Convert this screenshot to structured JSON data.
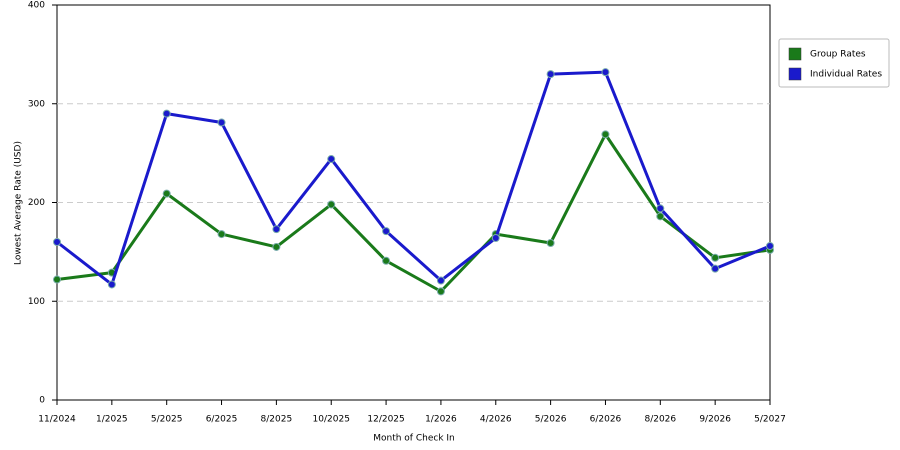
{
  "chart_data": {
    "type": "line",
    "x_label": "Month of Check In",
    "y_label": "Lowest Average Rate (USD)",
    "categories": [
      "11/2024",
      "1/2025",
      "5/2025",
      "6/2025",
      "8/2025",
      "10/2025",
      "12/2025",
      "1/2026",
      "4/2026",
      "5/2026",
      "6/2026",
      "8/2026",
      "9/2026",
      "5/2027"
    ],
    "series": [
      {
        "name": "Group Rates",
        "color": "#1a7a1a",
        "values": [
          122,
          129,
          209,
          168,
          155,
          198,
          141,
          110,
          168,
          159,
          269,
          186,
          144,
          152
        ]
      },
      {
        "name": "Individual Rates",
        "color": "#1a1acc",
        "values": [
          160,
          117,
          290,
          281,
          173,
          244,
          171,
          121,
          164,
          330,
          332,
          194,
          133,
          156
        ]
      }
    ],
    "ylim": [
      0,
      400
    ],
    "yticks": [
      0,
      100,
      200,
      300,
      400
    ],
    "grid": true,
    "legend": "right"
  }
}
